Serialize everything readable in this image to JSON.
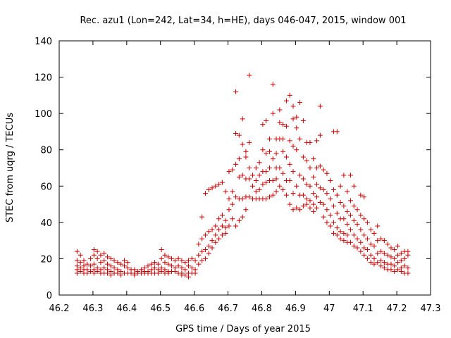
{
  "chart_data": {
    "type": "scatter",
    "title": "Rec. azu1 (Lon=242, Lat=34, h=HE), days 046-047, 2015, window 001",
    "xlabel": "GPS time / Days of year 2015",
    "ylabel": "STEC from uqrg / TECUs",
    "xlim": [
      46.2,
      47.3
    ],
    "ylim": [
      0,
      140
    ],
    "xticks": [
      "46.2",
      "46.3",
      "46.4",
      "46.5",
      "46.6",
      "46.7",
      "46.8",
      "46.9",
      "47",
      "47.1",
      "47.2",
      "47.3"
    ],
    "yticks": [
      "0",
      "20",
      "40",
      "60",
      "80",
      "100",
      "120",
      "140"
    ],
    "grid": false,
    "marker": "+",
    "color": "#cc0000",
    "points": [
      [
        46.253,
        24
      ],
      [
        46.253,
        19
      ],
      [
        46.253,
        16
      ],
      [
        46.253,
        14
      ],
      [
        46.253,
        12
      ],
      [
        46.263,
        22
      ],
      [
        46.263,
        18
      ],
      [
        46.263,
        15
      ],
      [
        46.263,
        13
      ],
      [
        46.273,
        19
      ],
      [
        46.273,
        16
      ],
      [
        46.273,
        14
      ],
      [
        46.273,
        12
      ],
      [
        46.283,
        17
      ],
      [
        46.283,
        14
      ],
      [
        46.283,
        12
      ],
      [
        46.293,
        20
      ],
      [
        46.293,
        16
      ],
      [
        46.293,
        13
      ],
      [
        46.303,
        25
      ],
      [
        46.303,
        22
      ],
      [
        46.303,
        17
      ],
      [
        46.303,
        14
      ],
      [
        46.303,
        12
      ],
      [
        46.313,
        24
      ],
      [
        46.313,
        20
      ],
      [
        46.313,
        15
      ],
      [
        46.313,
        13
      ],
      [
        46.323,
        22
      ],
      [
        46.323,
        18
      ],
      [
        46.323,
        14
      ],
      [
        46.323,
        12
      ],
      [
        46.333,
        23
      ],
      [
        46.333,
        19
      ],
      [
        46.333,
        15
      ],
      [
        46.333,
        12
      ],
      [
        46.343,
        21
      ],
      [
        46.343,
        17
      ],
      [
        46.343,
        14
      ],
      [
        46.343,
        12
      ],
      [
        46.353,
        20
      ],
      [
        46.353,
        16
      ],
      [
        46.353,
        13
      ],
      [
        46.353,
        11
      ],
      [
        46.363,
        19
      ],
      [
        46.363,
        15
      ],
      [
        46.363,
        12
      ],
      [
        46.373,
        18
      ],
      [
        46.373,
        14
      ],
      [
        46.373,
        12
      ],
      [
        46.383,
        17
      ],
      [
        46.383,
        13
      ],
      [
        46.383,
        11
      ],
      [
        46.393,
        19
      ],
      [
        46.393,
        16
      ],
      [
        46.393,
        12
      ],
      [
        46.403,
        18
      ],
      [
        46.403,
        15
      ],
      [
        46.403,
        12
      ],
      [
        46.413,
        14
      ],
      [
        46.413,
        12
      ],
      [
        46.423,
        14
      ],
      [
        46.423,
        12
      ],
      [
        46.423,
        11
      ],
      [
        46.433,
        13
      ],
      [
        46.433,
        12
      ],
      [
        46.443,
        14
      ],
      [
        46.443,
        12
      ],
      [
        46.453,
        15
      ],
      [
        46.453,
        13
      ],
      [
        46.453,
        12
      ],
      [
        46.463,
        16
      ],
      [
        46.463,
        13
      ],
      [
        46.463,
        12
      ],
      [
        46.473,
        17
      ],
      [
        46.473,
        14
      ],
      [
        46.473,
        12
      ],
      [
        46.483,
        18
      ],
      [
        46.483,
        15
      ],
      [
        46.483,
        12
      ],
      [
        46.493,
        17
      ],
      [
        46.493,
        14
      ],
      [
        46.493,
        12
      ],
      [
        46.503,
        25
      ],
      [
        46.503,
        20
      ],
      [
        46.503,
        15
      ],
      [
        46.503,
        13
      ],
      [
        46.513,
        22
      ],
      [
        46.513,
        18
      ],
      [
        46.513,
        14
      ],
      [
        46.513,
        12
      ],
      [
        46.523,
        21
      ],
      [
        46.523,
        17
      ],
      [
        46.523,
        13
      ],
      [
        46.523,
        12
      ],
      [
        46.533,
        20
      ],
      [
        46.533,
        16
      ],
      [
        46.533,
        13
      ],
      [
        46.543,
        19
      ],
      [
        46.543,
        15
      ],
      [
        46.543,
        13
      ],
      [
        46.553,
        20
      ],
      [
        46.553,
        16
      ],
      [
        46.553,
        12
      ],
      [
        46.563,
        19
      ],
      [
        46.563,
        15
      ],
      [
        46.563,
        12
      ],
      [
        46.563,
        11
      ],
      [
        46.573,
        18
      ],
      [
        46.573,
        14
      ],
      [
        46.573,
        11
      ],
      [
        46.583,
        19
      ],
      [
        46.583,
        16
      ],
      [
        46.583,
        12
      ],
      [
        46.583,
        10
      ],
      [
        46.593,
        20
      ],
      [
        46.593,
        15
      ],
      [
        46.593,
        12
      ],
      [
        46.603,
        19
      ],
      [
        46.603,
        14
      ],
      [
        46.603,
        12
      ],
      [
        46.613,
        28
      ],
      [
        46.613,
        22
      ],
      [
        46.613,
        17
      ],
      [
        46.623,
        43
      ],
      [
        46.623,
        31
      ],
      [
        46.623,
        24
      ],
      [
        46.623,
        19
      ],
      [
        46.633,
        56
      ],
      [
        46.633,
        33
      ],
      [
        46.633,
        25
      ],
      [
        46.633,
        20
      ],
      [
        46.643,
        58
      ],
      [
        46.643,
        35
      ],
      [
        46.643,
        27
      ],
      [
        46.643,
        23
      ],
      [
        46.653,
        59
      ],
      [
        46.653,
        36
      ],
      [
        46.653,
        30
      ],
      [
        46.653,
        26
      ],
      [
        46.663,
        60
      ],
      [
        46.663,
        38
      ],
      [
        46.663,
        33
      ],
      [
        46.663,
        29
      ],
      [
        46.673,
        61
      ],
      [
        46.673,
        42
      ],
      [
        46.673,
        36
      ],
      [
        46.673,
        31
      ],
      [
        46.683,
        62
      ],
      [
        46.683,
        44
      ],
      [
        46.683,
        38
      ],
      [
        46.683,
        33
      ],
      [
        46.693,
        57
      ],
      [
        46.693,
        41
      ],
      [
        46.693,
        37
      ],
      [
        46.693,
        34
      ],
      [
        46.703,
        68
      ],
      [
        46.703,
        53
      ],
      [
        46.703,
        47
      ],
      [
        46.703,
        38
      ],
      [
        46.713,
        69
      ],
      [
        46.713,
        57
      ],
      [
        46.713,
        50
      ],
      [
        46.713,
        42
      ],
      [
        46.723,
        112
      ],
      [
        46.723,
        89
      ],
      [
        46.723,
        72
      ],
      [
        46.723,
        54
      ],
      [
        46.723,
        38
      ],
      [
        46.733,
        88
      ],
      [
        46.733,
        75
      ],
      [
        46.733,
        65
      ],
      [
        46.733,
        53
      ],
      [
        46.733,
        41
      ],
      [
        46.743,
        97
      ],
      [
        46.743,
        83
      ],
      [
        46.743,
        66
      ],
      [
        46.743,
        53
      ],
      [
        46.743,
        43
      ],
      [
        46.753,
        79
      ],
      [
        46.753,
        76
      ],
      [
        46.753,
        64
      ],
      [
        46.753,
        54
      ],
      [
        46.753,
        47
      ],
      [
        46.763,
        121
      ],
      [
        46.763,
        84
      ],
      [
        46.763,
        70
      ],
      [
        46.763,
        64
      ],
      [
        46.763,
        54
      ],
      [
        46.773,
        66
      ],
      [
        46.773,
        60
      ],
      [
        46.773,
        53
      ],
      [
        46.783,
        70
      ],
      [
        46.783,
        63
      ],
      [
        46.783,
        57
      ],
      [
        46.783,
        53
      ],
      [
        46.793,
        73
      ],
      [
        46.793,
        66
      ],
      [
        46.793,
        58
      ],
      [
        46.793,
        53
      ],
      [
        46.803,
        94
      ],
      [
        46.803,
        80
      ],
      [
        46.803,
        68
      ],
      [
        46.803,
        61
      ],
      [
        46.803,
        53
      ],
      [
        46.813,
        96
      ],
      [
        46.813,
        78
      ],
      [
        46.813,
        68
      ],
      [
        46.813,
        62
      ],
      [
        46.813,
        53
      ],
      [
        46.823,
        86
      ],
      [
        46.823,
        79
      ],
      [
        46.823,
        70
      ],
      [
        46.823,
        63
      ],
      [
        46.823,
        54
      ],
      [
        46.833,
        116
      ],
      [
        46.833,
        100
      ],
      [
        46.833,
        75
      ],
      [
        46.833,
        63
      ],
      [
        46.833,
        55
      ],
      [
        46.843,
        86
      ],
      [
        46.843,
        78
      ],
      [
        46.843,
        70
      ],
      [
        46.843,
        64
      ],
      [
        46.843,
        57
      ],
      [
        46.853,
        102
      ],
      [
        46.853,
        95
      ],
      [
        46.853,
        86
      ],
      [
        46.853,
        70
      ],
      [
        46.853,
        60
      ],
      [
        46.863,
        94
      ],
      [
        46.863,
        86
      ],
      [
        46.863,
        79
      ],
      [
        46.863,
        67
      ],
      [
        46.863,
        58
      ],
      [
        46.873,
        107
      ],
      [
        46.873,
        93
      ],
      [
        46.873,
        76
      ],
      [
        46.873,
        63
      ],
      [
        46.873,
        55
      ],
      [
        46.883,
        110
      ],
      [
        46.883,
        85
      ],
      [
        46.883,
        72
      ],
      [
        46.883,
        63
      ],
      [
        46.883,
        50
      ],
      [
        46.893,
        104
      ],
      [
        46.893,
        97
      ],
      [
        46.893,
        82
      ],
      [
        46.893,
        68
      ],
      [
        46.893,
        56
      ],
      [
        46.893,
        47
      ],
      [
        46.903,
        98
      ],
      [
        46.903,
        92
      ],
      [
        46.903,
        80
      ],
      [
        46.903,
        60
      ],
      [
        46.903,
        48
      ],
      [
        46.913,
        106
      ],
      [
        46.913,
        86
      ],
      [
        46.913,
        66
      ],
      [
        46.913,
        55
      ],
      [
        46.913,
        47
      ],
      [
        46.923,
        96
      ],
      [
        46.923,
        76
      ],
      [
        46.923,
        64
      ],
      [
        46.923,
        55
      ],
      [
        46.923,
        49
      ],
      [
        46.933,
        84
      ],
      [
        46.933,
        74
      ],
      [
        46.933,
        61
      ],
      [
        46.933,
        53
      ],
      [
        46.933,
        50
      ],
      [
        46.943,
        84
      ],
      [
        46.943,
        70
      ],
      [
        46.943,
        60
      ],
      [
        46.943,
        52
      ],
      [
        46.943,
        48
      ],
      [
        46.953,
        75
      ],
      [
        46.953,
        65
      ],
      [
        46.953,
        56
      ],
      [
        46.953,
        50
      ],
      [
        46.953,
        46
      ],
      [
        46.963,
        85
      ],
      [
        46.963,
        70
      ],
      [
        46.963,
        61
      ],
      [
        46.963,
        54
      ],
      [
        46.963,
        48
      ],
      [
        46.973,
        104
      ],
      [
        46.973,
        88
      ],
      [
        46.973,
        71
      ],
      [
        46.973,
        59
      ],
      [
        46.973,
        51
      ],
      [
        46.983,
        69
      ],
      [
        46.983,
        58
      ],
      [
        46.983,
        50
      ],
      [
        46.983,
        43
      ],
      [
        46.993,
        67
      ],
      [
        46.993,
        56
      ],
      [
        46.993,
        47
      ],
      [
        46.993,
        40
      ],
      [
        47.003,
        63
      ],
      [
        47.003,
        53
      ],
      [
        47.003,
        44
      ],
      [
        47.003,
        38
      ],
      [
        47.013,
        90
      ],
      [
        47.013,
        58
      ],
      [
        47.013,
        49
      ],
      [
        47.013,
        40
      ],
      [
        47.013,
        34
      ],
      [
        47.023,
        90
      ],
      [
        47.023,
        55
      ],
      [
        47.023,
        45
      ],
      [
        47.023,
        37
      ],
      [
        47.023,
        33
      ],
      [
        47.033,
        60
      ],
      [
        47.033,
        51
      ],
      [
        47.033,
        42
      ],
      [
        47.033,
        35
      ],
      [
        47.033,
        31
      ],
      [
        47.043,
        66
      ],
      [
        47.043,
        49
      ],
      [
        47.043,
        42
      ],
      [
        47.043,
        34
      ],
      [
        47.043,
        30
      ],
      [
        47.053,
        57
      ],
      [
        47.053,
        46
      ],
      [
        47.053,
        39
      ],
      [
        47.053,
        33
      ],
      [
        47.053,
        29
      ],
      [
        47.063,
        66
      ],
      [
        47.063,
        52
      ],
      [
        47.063,
        44
      ],
      [
        47.063,
        36
      ],
      [
        47.063,
        29
      ],
      [
        47.073,
        60
      ],
      [
        47.073,
        49
      ],
      [
        47.073,
        41
      ],
      [
        47.073,
        33
      ],
      [
        47.073,
        27
      ],
      [
        47.083,
        47
      ],
      [
        47.083,
        39
      ],
      [
        47.083,
        31
      ],
      [
        47.083,
        26
      ],
      [
        47.093,
        55
      ],
      [
        47.093,
        44
      ],
      [
        47.093,
        36
      ],
      [
        47.093,
        29
      ],
      [
        47.093,
        24
      ],
      [
        47.103,
        54
      ],
      [
        47.103,
        42
      ],
      [
        47.103,
        33
      ],
      [
        47.103,
        26
      ],
      [
        47.103,
        22
      ],
      [
        47.113,
        40
      ],
      [
        47.113,
        31
      ],
      [
        47.113,
        25
      ],
      [
        47.113,
        20
      ],
      [
        47.123,
        36
      ],
      [
        47.123,
        28
      ],
      [
        47.123,
        22
      ],
      [
        47.123,
        18
      ],
      [
        47.133,
        34
      ],
      [
        47.133,
        27
      ],
      [
        47.133,
        20
      ],
      [
        47.133,
        17
      ],
      [
        47.143,
        38
      ],
      [
        47.143,
        30
      ],
      [
        47.143,
        23
      ],
      [
        47.143,
        18
      ],
      [
        47.153,
        31
      ],
      [
        47.153,
        24
      ],
      [
        47.153,
        19
      ],
      [
        47.153,
        16
      ],
      [
        47.163,
        30
      ],
      [
        47.163,
        23
      ],
      [
        47.163,
        18
      ],
      [
        47.163,
        15
      ],
      [
        47.173,
        28
      ],
      [
        47.173,
        22
      ],
      [
        47.173,
        17
      ],
      [
        47.173,
        14
      ],
      [
        47.183,
        26
      ],
      [
        47.183,
        21
      ],
      [
        47.183,
        17
      ],
      [
        47.183,
        14
      ],
      [
        47.193,
        25
      ],
      [
        47.193,
        20
      ],
      [
        47.193,
        16
      ],
      [
        47.193,
        13
      ],
      [
        47.203,
        27
      ],
      [
        47.203,
        22
      ],
      [
        47.203,
        18
      ],
      [
        47.203,
        14
      ],
      [
        47.213,
        23
      ],
      [
        47.213,
        19
      ],
      [
        47.213,
        15
      ],
      [
        47.213,
        13
      ],
      [
        47.223,
        24
      ],
      [
        47.223,
        20
      ],
      [
        47.223,
        16
      ],
      [
        47.223,
        12
      ],
      [
        47.233,
        24
      ],
      [
        47.233,
        22
      ],
      [
        47.233,
        15
      ],
      [
        47.233,
        12
      ]
    ]
  }
}
